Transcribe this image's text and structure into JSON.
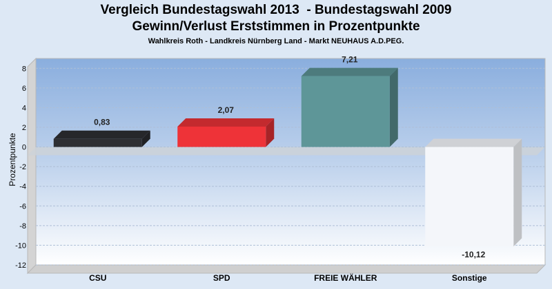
{
  "title": "Vergleich Bundestagswahl 2013  - Bundestagswahl 2009",
  "subtitle": "Gewinn/Verlust Erststimmen in Prozentpunkte",
  "caption": "Wahlkreis Roth - Landkreis Nürnberg Land - Markt NEUHAUS A.D.PEG.",
  "chart_data": {
    "type": "bar",
    "categories": [
      "CSU",
      "SPD",
      "FREIE WÄHLER",
      "Sonstige"
    ],
    "values": [
      0.83,
      2.07,
      7.21,
      -10.12
    ],
    "value_labels": [
      "0,83",
      "2,07",
      "7,21",
      "-10,12"
    ],
    "colors": [
      "#2e2f33",
      "#ee3338",
      "#5e9698",
      "#f4f6fa"
    ],
    "ylabel": "Prozentpunkte",
    "xlabel": "",
    "ylim": [
      -12,
      9
    ],
    "yticks": [
      8,
      6,
      4,
      2,
      0,
      -2,
      -4,
      -6,
      -8,
      -10,
      -12
    ],
    "grid": true,
    "legend": "none"
  }
}
